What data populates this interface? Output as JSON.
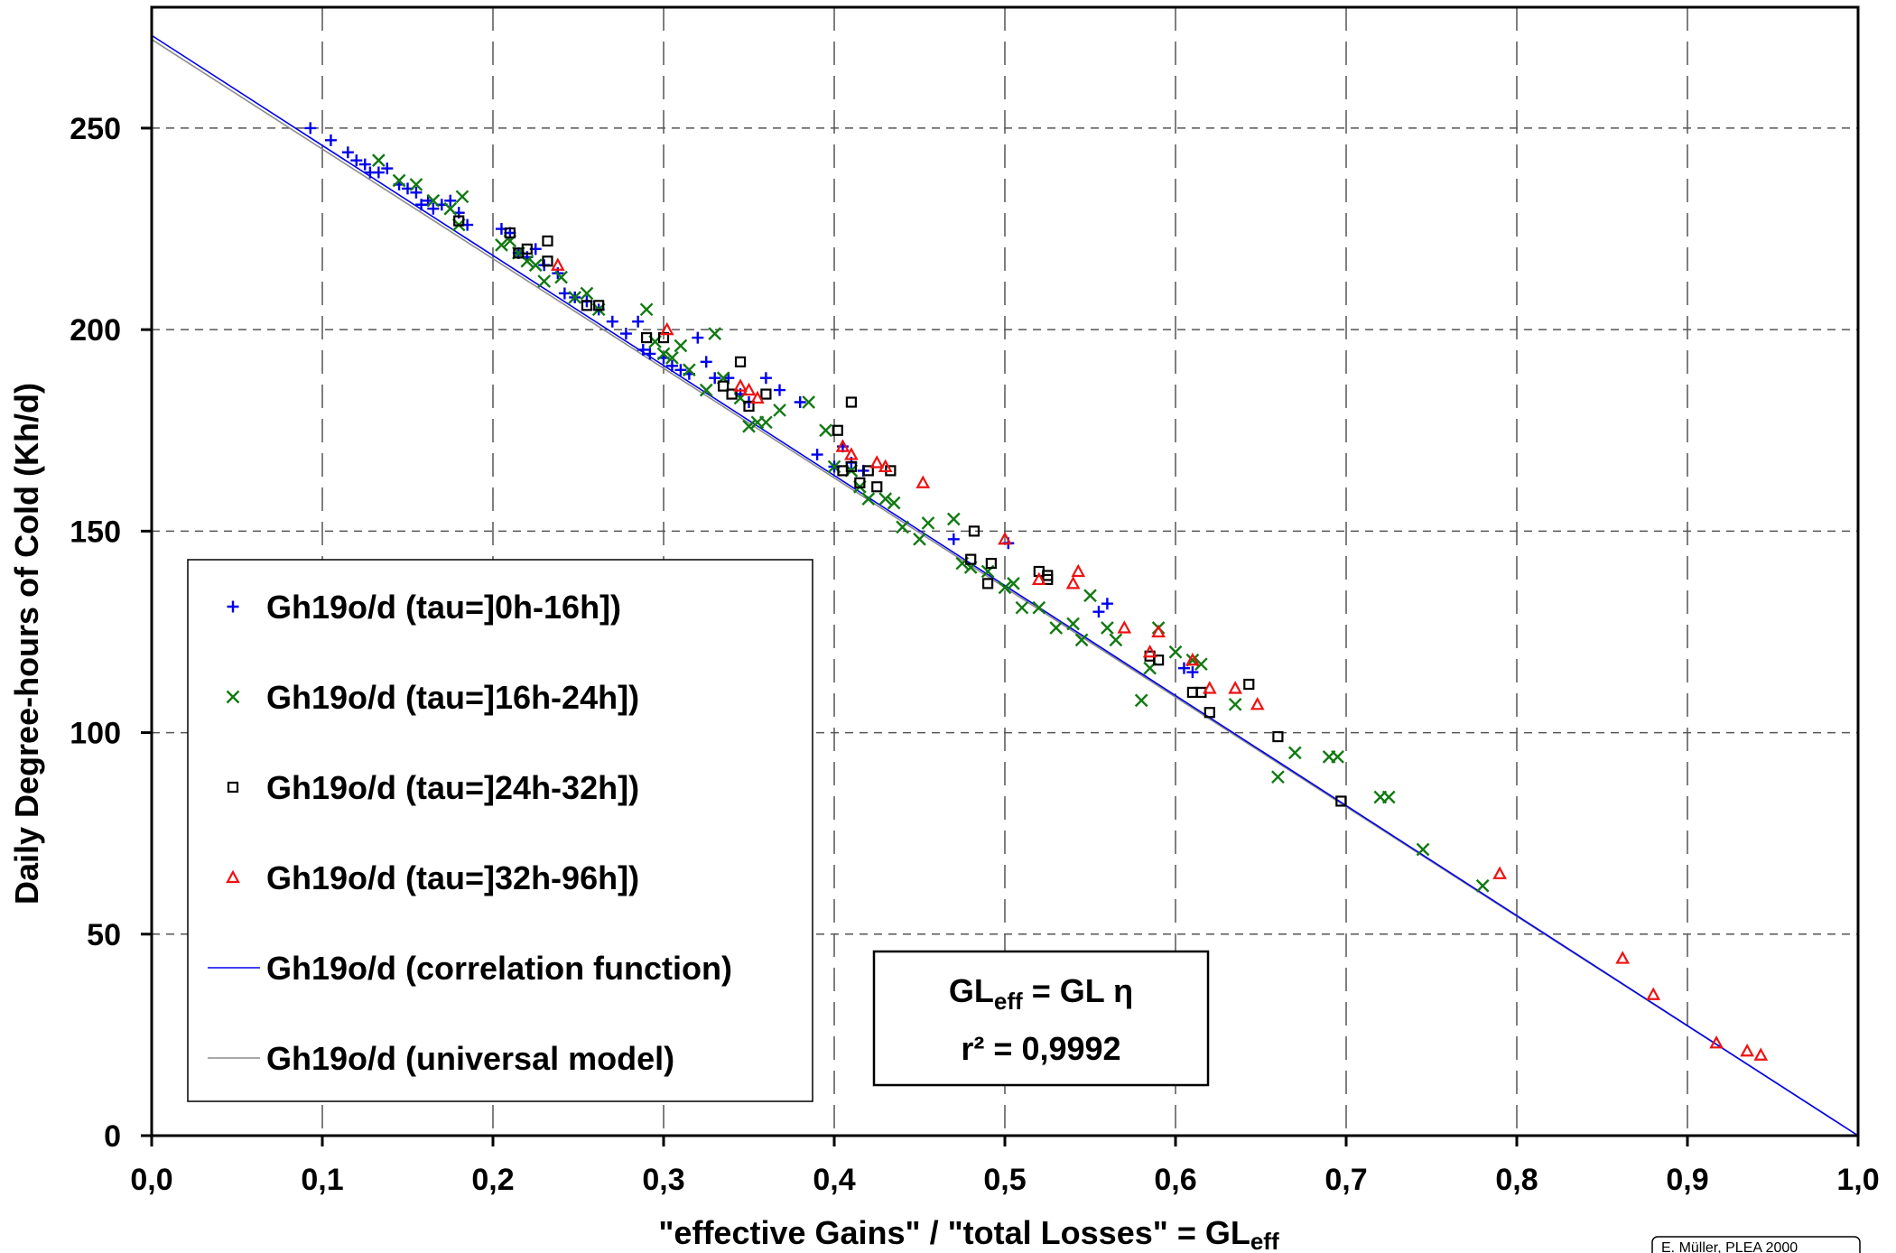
{
  "chart_data": {
    "type": "scatter",
    "title": "",
    "xlabel": "\"effective Gains\" / \"total Losses\"  =  GLeff",
    "xlabel_parts": {
      "main": "\"effective Gains\" / \"total Losses\"  =  GL",
      "sub": "eff"
    },
    "ylabel": "Daily Degree-hours of Cold (Kh/d)",
    "xlim": [
      0.0,
      1.0
    ],
    "ylim": [
      0,
      280
    ],
    "x_ticks": [
      0.0,
      0.1,
      0.2,
      0.3,
      0.4,
      0.5,
      0.6,
      0.7,
      0.8,
      0.9,
      1.0
    ],
    "x_tick_labels": [
      "0,0",
      "0,1",
      "0,2",
      "0,3",
      "0,4",
      "0,5",
      "0,6",
      "0,7",
      "0,8",
      "0,9",
      "1,0"
    ],
    "y_ticks": [
      0,
      50,
      100,
      150,
      200,
      250
    ],
    "y_tick_labels": [
      "0",
      "50",
      "100",
      "150",
      "200",
      "250"
    ],
    "grid": true,
    "legend_position": "lower-left",
    "series": [
      {
        "name": "Gh19o/d (tau=]0h-16h])",
        "marker": "plus",
        "color": "#0000ee",
        "points": [
          [
            0.093,
            250
          ],
          [
            0.105,
            247
          ],
          [
            0.115,
            244
          ],
          [
            0.12,
            242
          ],
          [
            0.125,
            241
          ],
          [
            0.128,
            239
          ],
          [
            0.133,
            239
          ],
          [
            0.138,
            240
          ],
          [
            0.145,
            236
          ],
          [
            0.15,
            235
          ],
          [
            0.155,
            234
          ],
          [
            0.158,
            231
          ],
          [
            0.162,
            232
          ],
          [
            0.165,
            230
          ],
          [
            0.17,
            231
          ],
          [
            0.175,
            232
          ],
          [
            0.18,
            229
          ],
          [
            0.185,
            226
          ],
          [
            0.205,
            225
          ],
          [
            0.21,
            224
          ],
          [
            0.215,
            219
          ],
          [
            0.22,
            218
          ],
          [
            0.225,
            220
          ],
          [
            0.23,
            216
          ],
          [
            0.238,
            214
          ],
          [
            0.242,
            209
          ],
          [
            0.248,
            208
          ],
          [
            0.255,
            207
          ],
          [
            0.262,
            205
          ],
          [
            0.27,
            202
          ],
          [
            0.278,
            199
          ],
          [
            0.285,
            202
          ],
          [
            0.288,
            195
          ],
          [
            0.292,
            194
          ],
          [
            0.3,
            193
          ],
          [
            0.305,
            191
          ],
          [
            0.31,
            190
          ],
          [
            0.315,
            189
          ],
          [
            0.32,
            198
          ],
          [
            0.325,
            192
          ],
          [
            0.33,
            188
          ],
          [
            0.338,
            188
          ],
          [
            0.345,
            184
          ],
          [
            0.35,
            182
          ],
          [
            0.36,
            188
          ],
          [
            0.368,
            185
          ],
          [
            0.38,
            182
          ],
          [
            0.39,
            169
          ],
          [
            0.4,
            166
          ],
          [
            0.405,
            171
          ],
          [
            0.41,
            167
          ],
          [
            0.417,
            165
          ],
          [
            0.47,
            148
          ],
          [
            0.502,
            147
          ],
          [
            0.555,
            130
          ],
          [
            0.56,
            132
          ],
          [
            0.605,
            116
          ],
          [
            0.61,
            115
          ]
        ]
      },
      {
        "name": "Gh19o/d (tau=]16h-24h])",
        "marker": "x",
        "color": "#117a11",
        "points": [
          [
            0.133,
            242
          ],
          [
            0.145,
            237
          ],
          [
            0.155,
            236
          ],
          [
            0.165,
            232
          ],
          [
            0.175,
            230
          ],
          [
            0.18,
            226
          ],
          [
            0.182,
            233
          ],
          [
            0.205,
            221
          ],
          [
            0.21,
            222
          ],
          [
            0.215,
            219
          ],
          [
            0.22,
            217
          ],
          [
            0.225,
            216
          ],
          [
            0.23,
            212
          ],
          [
            0.24,
            213
          ],
          [
            0.248,
            208
          ],
          [
            0.255,
            209
          ],
          [
            0.262,
            205
          ],
          [
            0.29,
            205
          ],
          [
            0.295,
            197
          ],
          [
            0.3,
            194
          ],
          [
            0.305,
            193
          ],
          [
            0.31,
            196
          ],
          [
            0.315,
            190
          ],
          [
            0.325,
            185
          ],
          [
            0.33,
            199
          ],
          [
            0.335,
            188
          ],
          [
            0.345,
            183
          ],
          [
            0.35,
            176
          ],
          [
            0.355,
            177
          ],
          [
            0.36,
            177
          ],
          [
            0.368,
            180
          ],
          [
            0.385,
            182
          ],
          [
            0.395,
            175
          ],
          [
            0.4,
            166
          ],
          [
            0.41,
            165
          ],
          [
            0.415,
            161
          ],
          [
            0.42,
            158
          ],
          [
            0.43,
            158
          ],
          [
            0.435,
            157
          ],
          [
            0.44,
            151
          ],
          [
            0.45,
            148
          ],
          [
            0.455,
            152
          ],
          [
            0.47,
            153
          ],
          [
            0.475,
            142
          ],
          [
            0.48,
            141
          ],
          [
            0.49,
            140
          ],
          [
            0.5,
            136
          ],
          [
            0.505,
            137
          ],
          [
            0.51,
            131
          ],
          [
            0.52,
            131
          ],
          [
            0.53,
            126
          ],
          [
            0.54,
            127
          ],
          [
            0.545,
            123
          ],
          [
            0.55,
            134
          ],
          [
            0.56,
            126
          ],
          [
            0.565,
            123
          ],
          [
            0.58,
            108
          ],
          [
            0.585,
            116
          ],
          [
            0.59,
            126
          ],
          [
            0.6,
            120
          ],
          [
            0.61,
            118
          ],
          [
            0.615,
            117
          ],
          [
            0.635,
            107
          ],
          [
            0.66,
            89
          ],
          [
            0.67,
            95
          ],
          [
            0.69,
            94
          ],
          [
            0.695,
            94
          ],
          [
            0.72,
            84
          ],
          [
            0.725,
            84
          ],
          [
            0.745,
            71
          ],
          [
            0.78,
            62
          ]
        ]
      },
      {
        "name": "Gh19o/d (tau=]24h-32h])",
        "marker": "square",
        "color": "#000000",
        "points": [
          [
            0.18,
            227
          ],
          [
            0.21,
            224
          ],
          [
            0.215,
            219
          ],
          [
            0.22,
            220
          ],
          [
            0.232,
            222
          ],
          [
            0.232,
            217
          ],
          [
            0.255,
            206
          ],
          [
            0.262,
            206
          ],
          [
            0.29,
            198
          ],
          [
            0.3,
            198
          ],
          [
            0.335,
            186
          ],
          [
            0.34,
            184
          ],
          [
            0.345,
            192
          ],
          [
            0.35,
            181
          ],
          [
            0.36,
            184
          ],
          [
            0.402,
            175
          ],
          [
            0.405,
            165
          ],
          [
            0.41,
            166
          ],
          [
            0.41,
            182
          ],
          [
            0.415,
            162
          ],
          [
            0.42,
            165
          ],
          [
            0.425,
            161
          ],
          [
            0.433,
            165
          ],
          [
            0.48,
            143
          ],
          [
            0.482,
            150
          ],
          [
            0.49,
            137
          ],
          [
            0.492,
            142
          ],
          [
            0.52,
            140
          ],
          [
            0.525,
            139
          ],
          [
            0.525,
            138
          ],
          [
            0.585,
            119
          ],
          [
            0.59,
            118
          ],
          [
            0.61,
            110
          ],
          [
            0.615,
            110
          ],
          [
            0.62,
            105
          ],
          [
            0.643,
            112
          ],
          [
            0.66,
            99
          ],
          [
            0.697,
            83
          ]
        ]
      },
      {
        "name": "Gh19o/d (tau=]32h-96h])",
        "marker": "triangle",
        "color": "#ee1111",
        "points": [
          [
            0.238,
            216
          ],
          [
            0.302,
            200
          ],
          [
            0.345,
            186
          ],
          [
            0.35,
            185
          ],
          [
            0.355,
            183
          ],
          [
            0.405,
            171
          ],
          [
            0.41,
            169
          ],
          [
            0.425,
            167
          ],
          [
            0.43,
            166
          ],
          [
            0.452,
            162
          ],
          [
            0.5,
            148
          ],
          [
            0.52,
            138
          ],
          [
            0.54,
            137
          ],
          [
            0.543,
            140
          ],
          [
            0.57,
            126
          ],
          [
            0.585,
            120
          ],
          [
            0.59,
            125
          ],
          [
            0.61,
            118
          ],
          [
            0.62,
            111
          ],
          [
            0.635,
            111
          ],
          [
            0.648,
            107
          ],
          [
            0.79,
            65
          ],
          [
            0.862,
            44
          ],
          [
            0.88,
            35
          ],
          [
            0.917,
            23
          ],
          [
            0.935,
            21
          ],
          [
            0.943,
            20
          ]
        ]
      }
    ],
    "lines": [
      {
        "name": "Gh19o/d (correlation function)",
        "color": "#0000ee",
        "x": [
          0.0,
          1.0
        ],
        "y": [
          273,
          0
        ]
      },
      {
        "name": "Gh19o/d (universal model)",
        "color": "#8c8c8c",
        "x": [
          0.0,
          1.0
        ],
        "y": [
          272,
          0
        ]
      }
    ],
    "annotation": {
      "line1_main": "GL",
      "line1_sub": "eff",
      "line1_rest": " = GL η",
      "line2": "r² = 0,9992"
    },
    "credit": "E. Müller, PLEA 2000"
  }
}
